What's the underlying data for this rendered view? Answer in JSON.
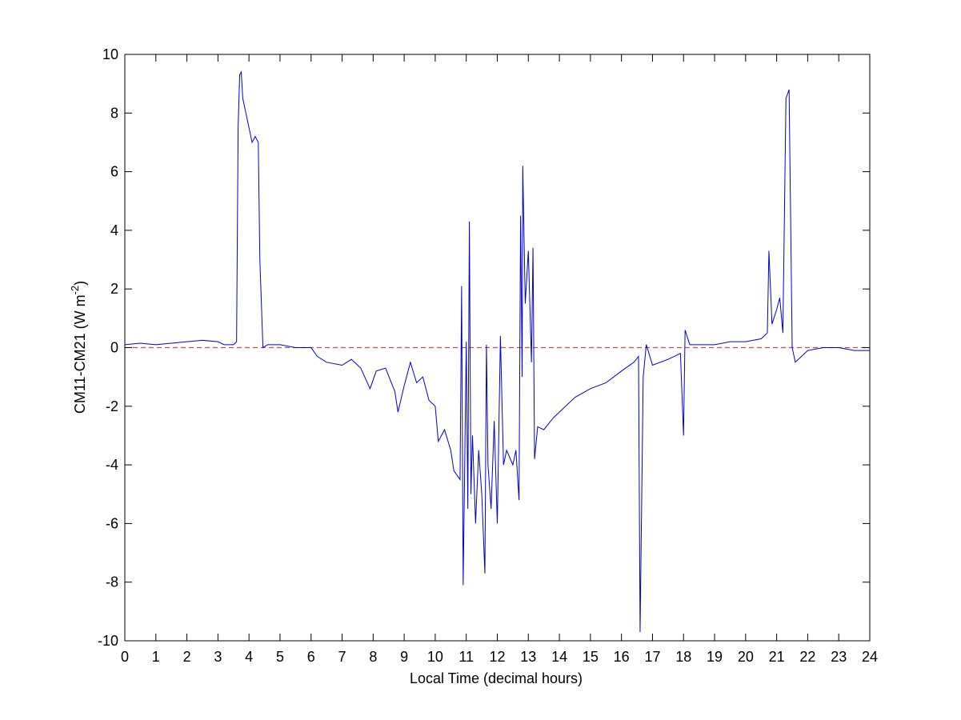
{
  "chart_data": {
    "type": "line",
    "xlabel": "Local Time (decimal hours)",
    "ylabel_parts": [
      "CM11-CM21 (W m",
      "-2",
      ")"
    ],
    "xlim": [
      0,
      24
    ],
    "ylim": [
      -10,
      10
    ],
    "xticks": [
      0,
      1,
      2,
      3,
      4,
      5,
      6,
      7,
      8,
      9,
      10,
      11,
      12,
      13,
      14,
      15,
      16,
      17,
      18,
      19,
      20,
      21,
      22,
      23,
      24
    ],
    "yticks": [
      -10,
      -8,
      -6,
      -4,
      -2,
      0,
      2,
      4,
      6,
      8,
      10
    ],
    "grid": false,
    "reference_line": {
      "value": 0,
      "color": "#c0504d",
      "dashed": true
    },
    "series": [
      {
        "color": "#0000cc",
        "x": [
          0,
          0.5,
          1,
          1.5,
          2,
          2.5,
          3,
          3.2,
          3.5,
          3.6,
          3.65,
          3.7,
          3.75,
          3.8,
          3.9,
          4.0,
          4.1,
          4.2,
          4.3,
          4.35,
          4.45,
          4.6,
          5,
          5.5,
          6,
          6.2,
          6.5,
          7,
          7.3,
          7.6,
          7.9,
          8.1,
          8.4,
          8.7,
          8.8,
          9,
          9.2,
          9.4,
          9.6,
          9.8,
          10,
          10.1,
          10.3,
          10.5,
          10.6,
          10.8,
          10.85,
          10.9,
          10.95,
          11.0,
          11.05,
          11.1,
          11.15,
          11.2,
          11.3,
          11.4,
          11.5,
          11.6,
          11.65,
          11.7,
          11.8,
          11.9,
          12.0,
          12.1,
          12.2,
          12.3,
          12.5,
          12.6,
          12.7,
          12.75,
          12.8,
          12.82,
          12.9,
          13.0,
          13.1,
          13.15,
          13.2,
          13.3,
          13.5,
          13.8,
          14,
          14.5,
          15,
          15.5,
          16,
          16.4,
          16.55,
          16.6,
          16.7,
          16.8,
          17,
          17.5,
          17.9,
          18.0,
          18.05,
          18.2,
          18.5,
          19,
          19.5,
          20,
          20.5,
          20.7,
          20.75,
          20.85,
          21.0,
          21.1,
          21.2,
          21.3,
          21.4,
          21.5,
          21.6,
          21.8,
          22,
          22.5,
          23,
          23.5,
          24
        ],
        "values": [
          0.1,
          0.15,
          0.1,
          0.15,
          0.2,
          0.25,
          0.2,
          0.1,
          0.1,
          0.2,
          7.5,
          9.3,
          9.4,
          8.5,
          8.0,
          7.5,
          7.0,
          7.2,
          7.0,
          3.0,
          0.0,
          0.1,
          0.1,
          0.0,
          0.0,
          -0.3,
          -0.5,
          -0.6,
          -0.4,
          -0.7,
          -1.4,
          -0.8,
          -0.7,
          -1.5,
          -2.2,
          -1.3,
          -0.5,
          -1.2,
          -1.0,
          -1.8,
          -2.0,
          -3.2,
          -2.8,
          -3.5,
          -4.2,
          -4.5,
          2.1,
          -8.1,
          -4.0,
          0.2,
          -5.5,
          4.3,
          -5.0,
          -3.0,
          -6.0,
          -3.5,
          -5.0,
          -7.7,
          0.1,
          -4.0,
          -5.5,
          -2.5,
          -6.0,
          0.4,
          -4.0,
          -3.5,
          -4.0,
          -3.5,
          -5.2,
          4.5,
          -1.0,
          6.2,
          1.5,
          3.3,
          -0.5,
          3.4,
          -3.8,
          -2.7,
          -2.8,
          -2.4,
          -2.2,
          -1.7,
          -1.4,
          -1.2,
          -0.8,
          -0.5,
          -0.3,
          -9.7,
          -1.0,
          0.1,
          -0.6,
          -0.4,
          -0.2,
          -3.0,
          0.6,
          0.1,
          0.1,
          0.1,
          0.2,
          0.2,
          0.3,
          0.5,
          3.3,
          0.8,
          1.3,
          1.7,
          0.5,
          8.5,
          8.8,
          0.0,
          -0.5,
          -0.3,
          -0.1,
          0.0,
          0.0,
          -0.1,
          -0.1
        ]
      }
    ]
  }
}
